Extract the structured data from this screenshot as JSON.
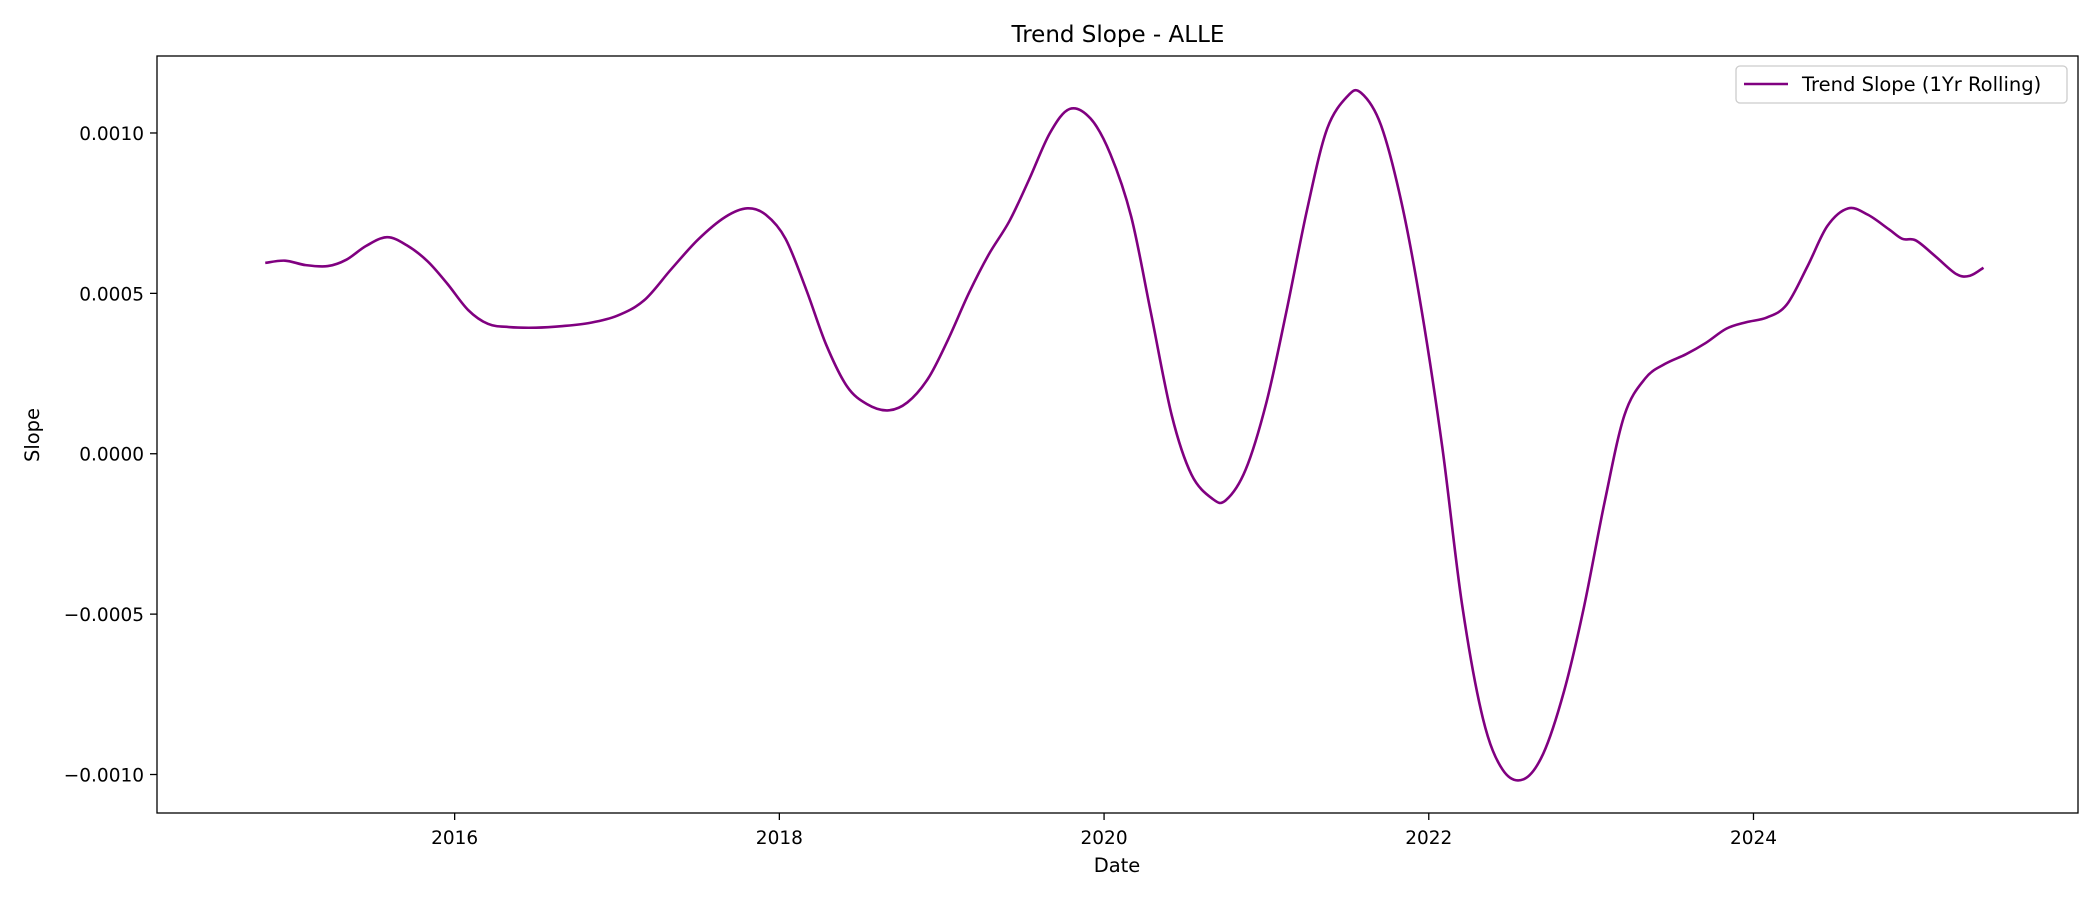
{
  "chart_data": {
    "type": "line",
    "title": "Trend Slope - ALLE",
    "xlabel": "Date",
    "ylabel": "Slope",
    "xlim": [
      "2014-03-01",
      "2025-12-31"
    ],
    "ylim": [
      -0.00112,
      0.00124
    ],
    "x_ticks": [
      "2016-01-01",
      "2018-01-01",
      "2020-01-01",
      "2022-01-01",
      "2024-01-01"
    ],
    "x_tick_labels": [
      "2016",
      "2018",
      "2020",
      "2022",
      "2024"
    ],
    "y_ticks": [
      -0.001,
      -0.0005,
      0.0,
      0.0005,
      0.001
    ],
    "y_tick_labels": [
      "−0.0010",
      "−0.0005",
      "0.0000",
      "0.0005",
      "0.0010"
    ],
    "grid": false,
    "legend_position": "upper right",
    "series": [
      {
        "name": "Trend Slope (1Yr Rolling)",
        "color": "#800080",
        "points": [
          [
            "2014-11-01",
            0.000595
          ],
          [
            "2014-12-15",
            0.000602
          ],
          [
            "2015-02-01",
            0.000588
          ],
          [
            "2015-03-20",
            0.000585
          ],
          [
            "2015-05-01",
            0.000605
          ],
          [
            "2015-06-15",
            0.000648
          ],
          [
            "2015-08-01",
            0.000675
          ],
          [
            "2015-09-15",
            0.00065
          ],
          [
            "2015-11-01",
            0.0006
          ],
          [
            "2015-12-15",
            0.00053
          ],
          [
            "2016-02-01",
            0.000448
          ],
          [
            "2016-03-15",
            0.000405
          ],
          [
            "2016-05-01",
            0.000395
          ],
          [
            "2016-07-01",
            0.000393
          ],
          [
            "2016-09-01",
            0.000398
          ],
          [
            "2016-11-01",
            0.000408
          ],
          [
            "2017-01-01",
            0.00043
          ],
          [
            "2017-03-01",
            0.000478
          ],
          [
            "2017-05-01",
            0.000575
          ],
          [
            "2017-07-01",
            0.000668
          ],
          [
            "2017-09-01",
            0.000738
          ],
          [
            "2017-10-20",
            0.000765
          ],
          [
            "2017-12-01",
            0.000745
          ],
          [
            "2018-01-15",
            0.00067
          ],
          [
            "2018-03-01",
            0.00051
          ],
          [
            "2018-04-15",
            0.00034
          ],
          [
            "2018-06-01",
            0.00021
          ],
          [
            "2018-07-15",
            0.000155
          ],
          [
            "2018-09-01",
            0.000135
          ],
          [
            "2018-10-15",
            0.00016
          ],
          [
            "2018-12-01",
            0.000235
          ],
          [
            "2019-01-15",
            0.000355
          ],
          [
            "2019-03-01",
            0.0005
          ],
          [
            "2019-04-15",
            0.00062
          ],
          [
            "2019-06-01",
            0.000725
          ],
          [
            "2019-07-15",
            0.000855
          ],
          [
            "2019-09-01",
            0.001
          ],
          [
            "2019-10-15",
            0.001075
          ],
          [
            "2019-12-01",
            0.001045
          ],
          [
            "2020-01-15",
            0.000935
          ],
          [
            "2020-03-01",
            0.00074
          ],
          [
            "2020-04-15",
            0.00044
          ],
          [
            "2020-06-01",
            0.00012
          ],
          [
            "2020-07-15",
            -6.5e-05
          ],
          [
            "2020-09-01",
            -0.00014
          ],
          [
            "2020-10-01",
            -0.000145
          ],
          [
            "2020-11-15",
            -5e-05
          ],
          [
            "2021-01-01",
            0.00016
          ],
          [
            "2021-02-15",
            0.00044
          ],
          [
            "2021-04-01",
            0.00076
          ],
          [
            "2021-05-15",
            0.00101
          ],
          [
            "2021-07-01",
            0.001115
          ],
          [
            "2021-08-01",
            0.001125
          ],
          [
            "2021-09-15",
            0.001025
          ],
          [
            "2021-11-01",
            0.00078
          ],
          [
            "2021-12-15",
            0.00045
          ],
          [
            "2022-02-01",
            2e-05
          ],
          [
            "2022-03-15",
            -0.00047
          ],
          [
            "2022-05-01",
            -0.000825
          ],
          [
            "2022-06-15",
            -0.000985
          ],
          [
            "2022-08-01",
            -0.001015
          ],
          [
            "2022-09-15",
            -0.000935
          ],
          [
            "2022-11-01",
            -0.00074
          ],
          [
            "2022-12-15",
            -0.00048
          ],
          [
            "2023-02-01",
            -0.00015
          ],
          [
            "2023-03-15",
            0.00012
          ],
          [
            "2023-05-01",
            0.000235
          ],
          [
            "2023-06-15",
            0.00028
          ],
          [
            "2023-08-01",
            0.00031
          ],
          [
            "2023-09-15",
            0.000345
          ],
          [
            "2023-11-01",
            0.00039
          ],
          [
            "2023-12-15",
            0.00041
          ],
          [
            "2024-02-01",
            0.000425
          ],
          [
            "2024-03-15",
            0.000465
          ],
          [
            "2024-05-01",
            0.000585
          ],
          [
            "2024-06-15",
            0.00071
          ],
          [
            "2024-08-01",
            0.000765
          ],
          [
            "2024-09-15",
            0.000745
          ],
          [
            "2024-11-01",
            0.0007
          ],
          [
            "2024-12-01",
            0.00067
          ],
          [
            "2025-01-01",
            0.000665
          ],
          [
            "2025-02-15",
            0.000615
          ],
          [
            "2025-04-01",
            0.00056
          ],
          [
            "2025-05-01",
            0.000555
          ],
          [
            "2025-06-01",
            0.00058
          ]
        ]
      }
    ]
  }
}
